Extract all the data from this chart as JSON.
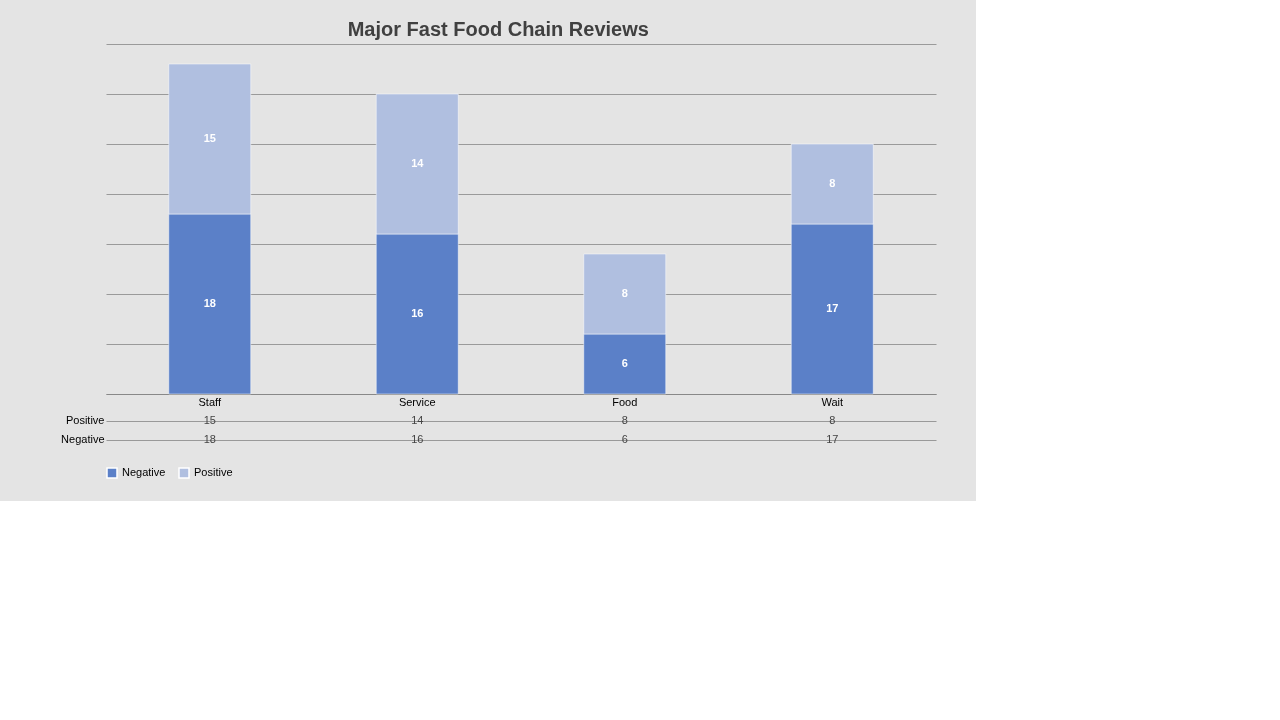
{
  "chart_data": {
    "type": "bar",
    "title": "Major Fast Food Chain Reviews",
    "categories": [
      "Staff",
      "Service",
      "Food",
      "Wait"
    ],
    "stacked": true,
    "series": [
      {
        "name": "Negative",
        "color": "#5b80c8",
        "values": [
          18,
          16,
          6,
          17
        ]
      },
      {
        "name": "Positive",
        "color": "#b0bfe0",
        "values": [
          15,
          14,
          8,
          8
        ]
      }
    ],
    "ylim": [
      0,
      35
    ],
    "yticks": [
      {
        "value": 0,
        "label": null
      },
      {
        "value": 5,
        "label": null
      },
      {
        "value": 10,
        "label": null
      },
      {
        "value": 15,
        "label": null
      },
      {
        "value": 20,
        "label": null
      },
      {
        "value": 25,
        "label": null
      },
      {
        "value": 30,
        "label": null
      },
      {
        "value": 35,
        "label": null
      }
    ],
    "annotations": [
      "15",
      "14",
      "8",
      "8",
      "18",
      "16",
      "6",
      "17"
    ],
    "tick_labels": "x",
    "grid": "y",
    "data_labels": true,
    "legend": "bottom"
  }
}
